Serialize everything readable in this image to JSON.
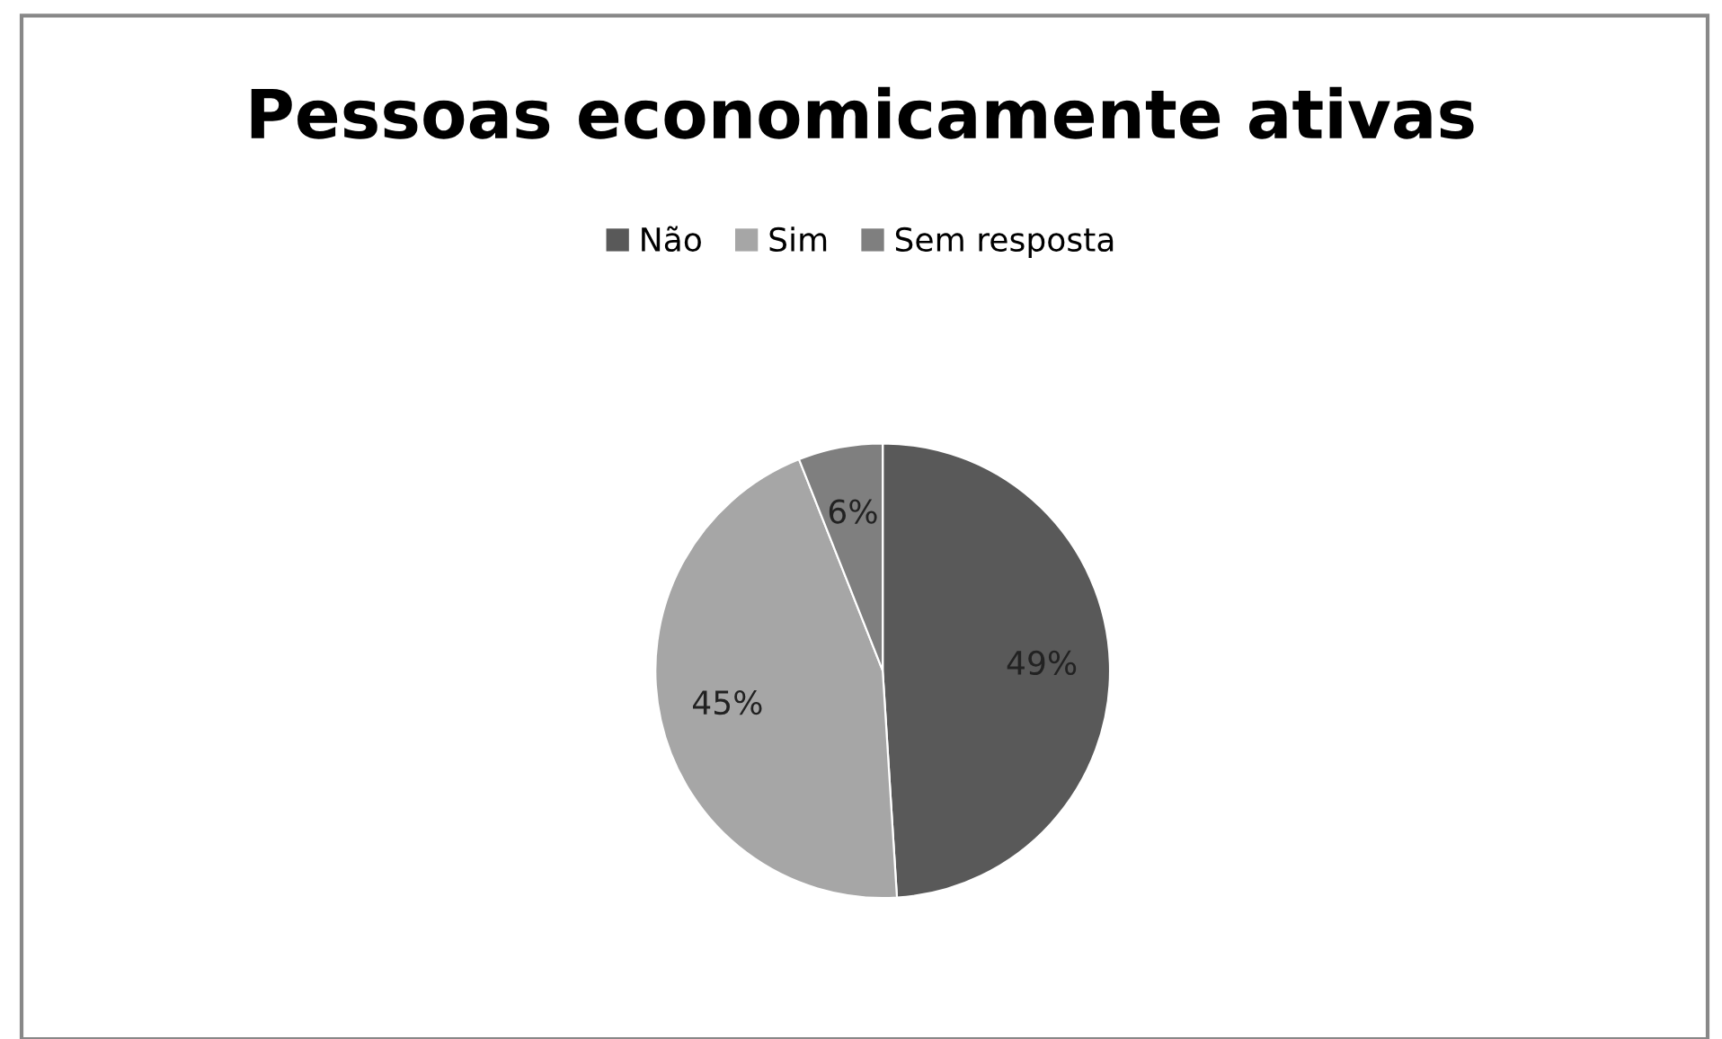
{
  "chart_data": {
    "type": "pie",
    "title": "Pessoas economicamente ativas",
    "categories": [
      "Não",
      "Sim",
      "Sem resposta"
    ],
    "values": [
      49,
      45,
      6
    ],
    "colors": [
      "#595959",
      "#a6a6a6",
      "#7f7f7f"
    ],
    "value_labels": [
      "49%",
      "45%",
      "6%"
    ],
    "legend": "top"
  }
}
